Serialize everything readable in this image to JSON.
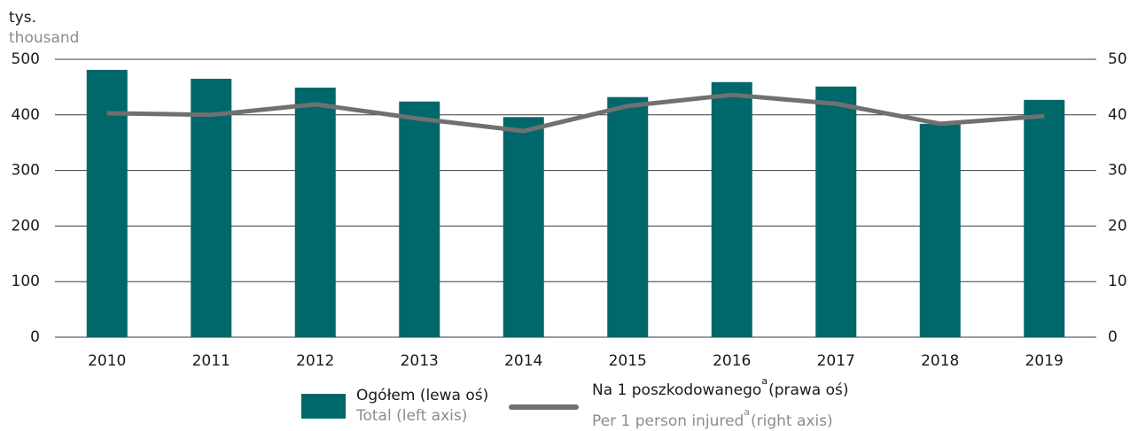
{
  "chart_data": {
    "type": "bar_line",
    "y_label": "tys.",
    "y_label_en": "thousand",
    "categories": [
      "2010",
      "2011",
      "2012",
      "2013",
      "2014",
      "2015",
      "2016",
      "2017",
      "2018",
      "2019"
    ],
    "ylim": [
      0,
      500
    ],
    "yticks": [
      0,
      100,
      200,
      300,
      400,
      500
    ],
    "y2lim": [
      0,
      50
    ],
    "y2ticks": [
      0,
      10,
      20,
      30,
      40,
      50
    ],
    "grid": true,
    "series": [
      {
        "name": "Ogółem (lewa oś)",
        "name_en": "Total (left axis)",
        "color": "#00676b",
        "type": "bar",
        "values": [
          481,
          465,
          449,
          424,
          396,
          432,
          459,
          451,
          384,
          427
        ]
      },
      {
        "name": "Na 1 poszkodowanego",
        "name_note": "a",
        "name_tail": "(prawa oś)",
        "name_en": "Per 1 person injured",
        "name_en_tail": "(right axis)",
        "color": "#707070",
        "type": "line",
        "axis": "y2",
        "values": [
          40.3,
          40.0,
          41.9,
          39.3,
          37.1,
          41.6,
          43.6,
          42.0,
          38.4,
          39.8
        ]
      }
    ]
  }
}
